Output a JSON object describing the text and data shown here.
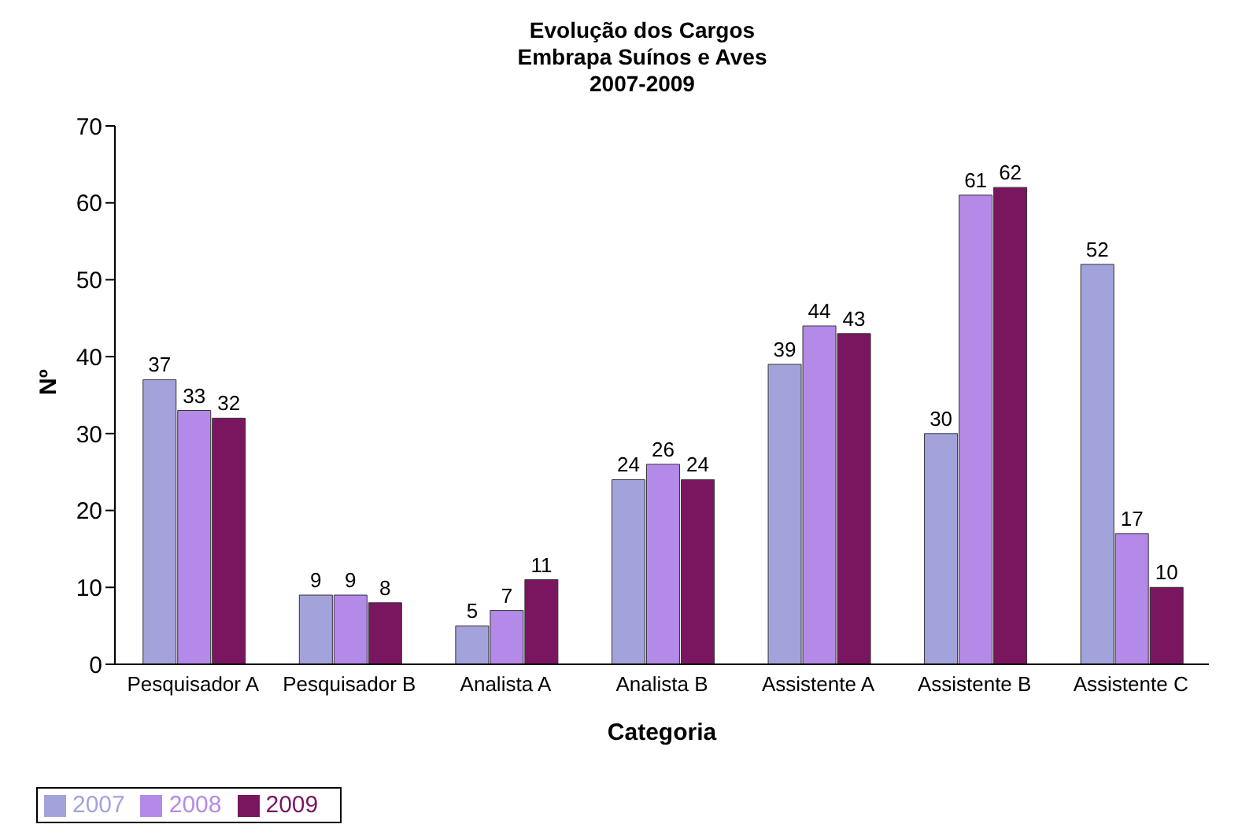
{
  "chart_data": {
    "type": "bar",
    "title": "Evolução dos Cargos\nEmbrapa Suínos e Aves\n2007-2009",
    "xlabel": "Categoria",
    "ylabel": "Nº",
    "categories": [
      "Pesquisador A",
      "Pesquisador B",
      "Analista A",
      "Analista B",
      "Assistente A",
      "Assistente B",
      "Assistente C"
    ],
    "series": [
      {
        "name": "2007",
        "color": "#a3a3dc",
        "values": [
          37,
          9,
          5,
          24,
          39,
          30,
          52
        ]
      },
      {
        "name": "2008",
        "color": "#b48ae8",
        "values": [
          33,
          9,
          7,
          26,
          44,
          61,
          17
        ]
      },
      {
        "name": "2009",
        "color": "#7a1660",
        "values": [
          32,
          8,
          11,
          24,
          43,
          62,
          10
        ]
      }
    ],
    "ylim": [
      0,
      70
    ],
    "yticks": [
      0,
      10,
      20,
      30,
      40,
      50,
      60,
      70
    ],
    "data_labels": true,
    "legend": "bottom left"
  }
}
